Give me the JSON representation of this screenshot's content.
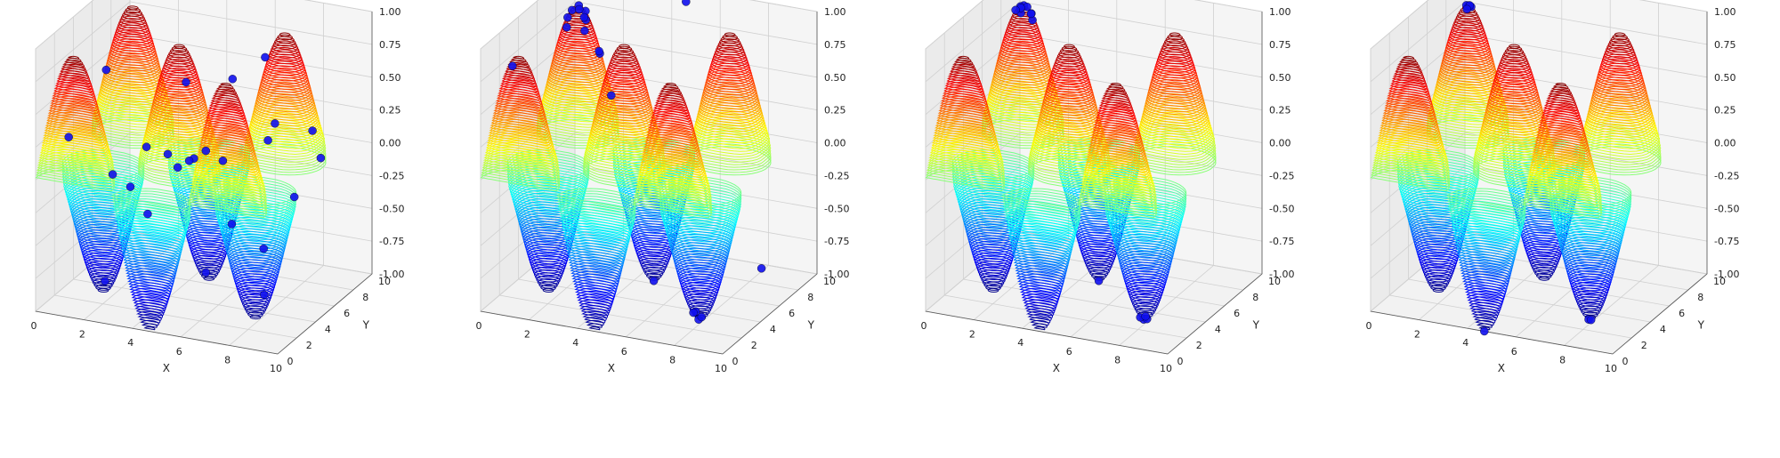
{
  "chart_data": [
    {
      "type": "3d-contour-scatter",
      "xlabel": "X",
      "ylabel": "Y",
      "zlabel": "",
      "xlim": [
        0,
        10
      ],
      "ylim": [
        0,
        10
      ],
      "zlim": [
        -1,
        1
      ],
      "xticks": [
        "0",
        "2",
        "4",
        "6",
        "8",
        "10"
      ],
      "yticks": [
        "0",
        "2",
        "4",
        "6",
        "8",
        "10"
      ],
      "zticks": [
        "-1.00",
        "-0.75",
        "-0.50",
        "-0.25",
        "0.00",
        "0.25",
        "0.50",
        "0.75",
        "1.00"
      ],
      "surface": "z = sin(x) * cos(y)",
      "contour_levels": 50,
      "colormap": "jet",
      "point_color": "#1010ee",
      "points": [
        [
          0.5,
          6.2
        ],
        [
          1.2,
          8.8
        ],
        [
          2.8,
          9.6
        ],
        [
          1.5,
          3.5
        ],
        [
          3.2,
          5.8
        ],
        [
          4.5,
          6.5
        ],
        [
          5.2,
          2.6
        ],
        [
          6.1,
          4.2
        ],
        [
          7.4,
          1.8
        ],
        [
          8.6,
          2.1
        ],
        [
          9.4,
          3.3
        ],
        [
          2.2,
          4.4
        ],
        [
          3.8,
          2.0
        ],
        [
          4.9,
          8.3
        ],
        [
          6.6,
          7.7
        ],
        [
          7.9,
          5.1
        ],
        [
          8.7,
          7.9
        ],
        [
          9.1,
          6.0
        ],
        [
          0.9,
          1.2
        ],
        [
          5.7,
          9.7
        ],
        [
          3.5,
          7.3
        ],
        [
          6.8,
          0.6
        ],
        [
          2.6,
          1.5
        ],
        [
          8.0,
          3.7
        ],
        [
          4.0,
          4.8
        ]
      ]
    },
    {
      "type": "3d-contour-scatter",
      "xlabel": "X",
      "ylabel": "Y",
      "zlabel": "",
      "xlim": [
        0,
        10
      ],
      "ylim": [
        0,
        10
      ],
      "zlim": [
        -1,
        1
      ],
      "xticks": [
        "0",
        "2",
        "4",
        "6",
        "8",
        "10"
      ],
      "yticks": [
        "0",
        "2",
        "4",
        "6",
        "8",
        "10"
      ],
      "zticks": [
        "-1.00",
        "-0.75",
        "-0.50",
        "-0.25",
        "0.00",
        "0.25",
        "0.50",
        "0.75",
        "1.00"
      ],
      "surface": "z = sin(x) * cos(y)",
      "contour_levels": 50,
      "colormap": "jet",
      "point_color": "#1010ee",
      "points": [
        [
          1.6,
          6.3
        ],
        [
          1.4,
          6.1
        ],
        [
          1.8,
          6.5
        ],
        [
          2.2,
          7.0
        ],
        [
          1.3,
          5.8
        ],
        [
          2.0,
          5.9
        ],
        [
          1.7,
          6.8
        ],
        [
          2.4,
          6.4
        ],
        [
          7.8,
          3.1
        ],
        [
          7.6,
          3.3
        ],
        [
          8.0,
          2.9
        ],
        [
          4.7,
          6.3
        ],
        [
          4.5,
          2.3
        ],
        [
          1.2,
          0.3
        ],
        [
          7.9,
          9.5
        ],
        [
          1.5,
          6.6
        ],
        [
          1.9,
          6.1
        ],
        [
          7.7,
          2.8
        ],
        [
          4.9,
          9.2
        ],
        [
          1.1,
          6.4
        ]
      ]
    },
    {
      "type": "3d-contour-scatter",
      "xlabel": "X",
      "ylabel": "Y",
      "zlabel": "",
      "xlim": [
        0,
        10
      ],
      "ylim": [
        0,
        10
      ],
      "zlim": [
        -1,
        1
      ],
      "xticks": [
        "0",
        "2",
        "4",
        "6",
        "8",
        "10"
      ],
      "yticks": [
        "0",
        "2",
        "4",
        "6",
        "8",
        "10"
      ],
      "zticks": [
        "-1.00",
        "-0.75",
        "-0.50",
        "-0.25",
        "0.00",
        "0.25",
        "0.50",
        "0.75",
        "1.00"
      ],
      "surface": "z = sin(x) * cos(y)",
      "contour_levels": 50,
      "colormap": "jet",
      "point_color": "#1010ee",
      "points": [
        [
          1.6,
          6.3
        ],
        [
          1.5,
          6.2
        ],
        [
          1.7,
          6.4
        ],
        [
          1.6,
          6.0
        ],
        [
          1.8,
          6.6
        ],
        [
          2.0,
          6.2
        ],
        [
          1.4,
          6.5
        ],
        [
          7.8,
          3.1
        ],
        [
          7.9,
          3.2
        ],
        [
          7.7,
          3.0
        ],
        [
          4.7,
          6.3
        ],
        [
          1.3,
          6.2
        ],
        [
          1.9,
          6.3
        ],
        [
          7.8,
          3.3
        ]
      ]
    },
    {
      "type": "3d-contour-scatter",
      "xlabel": "X",
      "ylabel": "Y",
      "zlabel": "",
      "xlim": [
        0,
        10
      ],
      "ylim": [
        0,
        10
      ],
      "zlim": [
        -1,
        1
      ],
      "xticks": [
        "0",
        "2",
        "4",
        "6",
        "8",
        "10"
      ],
      "yticks": [
        "0",
        "2",
        "4",
        "6",
        "8",
        "10"
      ],
      "zticks": [
        "-1.00",
        "-0.75",
        "-0.50",
        "-0.25",
        "0.00",
        "0.25",
        "0.50",
        "0.75",
        "1.00"
      ],
      "surface": "z = sin(x) * cos(y)",
      "contour_levels": 50,
      "colormap": "jet",
      "point_color": "#1010ee",
      "points": [
        [
          1.6,
          6.3
        ],
        [
          1.6,
          6.2
        ],
        [
          1.7,
          6.3
        ],
        [
          1.5,
          6.3
        ],
        [
          1.6,
          6.4
        ],
        [
          7.8,
          3.1
        ],
        [
          7.9,
          3.1
        ],
        [
          4.7,
          0.0
        ],
        [
          1.6,
          6.1
        ]
      ]
    }
  ]
}
